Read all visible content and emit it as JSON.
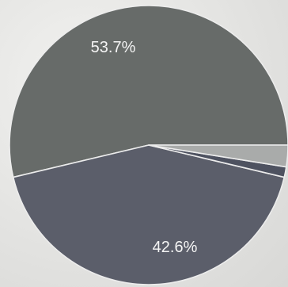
{
  "chart_data": {
    "type": "pie",
    "start_angle_deg": 0,
    "direction": "counterclockwise",
    "slices": [
      {
        "label": "53.7%",
        "value": 53.7,
        "color": "#676b69"
      },
      {
        "label": "42.6%",
        "value": 42.6,
        "color": "#5b5e6a"
      },
      {
        "label": "",
        "value": 1.2,
        "color": "#4e5260"
      },
      {
        "label": "",
        "value": 2.5,
        "color": "#a9abaa"
      }
    ],
    "slice_border_color": "#ececec",
    "background_color": "#e4e4e2"
  }
}
